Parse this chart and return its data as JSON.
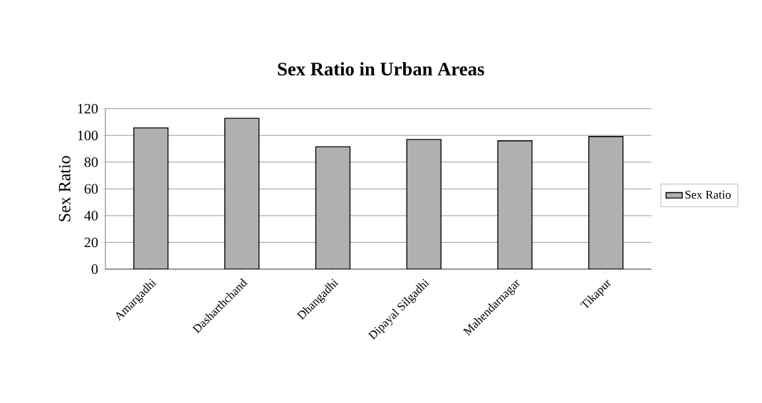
{
  "chart_data": {
    "type": "bar",
    "title": "Sex Ratio in Urban Areas",
    "ylabel": "Sex Ratio",
    "categories": [
      "Amargadhi",
      "Dasharthchand",
      "Dhangadhi",
      "Dipayal Silgadhi",
      "Mahendarnagar",
      "Tikapur"
    ],
    "series": [
      {
        "name": "Sex Ratio",
        "color": "#b0b0b0",
        "values": [
          105.6,
          112.8,
          91.5,
          97,
          96,
          99.2
        ]
      }
    ],
    "ylim": [
      0,
      120
    ],
    "yticks": [
      0,
      20,
      40,
      60,
      80,
      100,
      120
    ],
    "grid": "y",
    "legend": "right"
  }
}
